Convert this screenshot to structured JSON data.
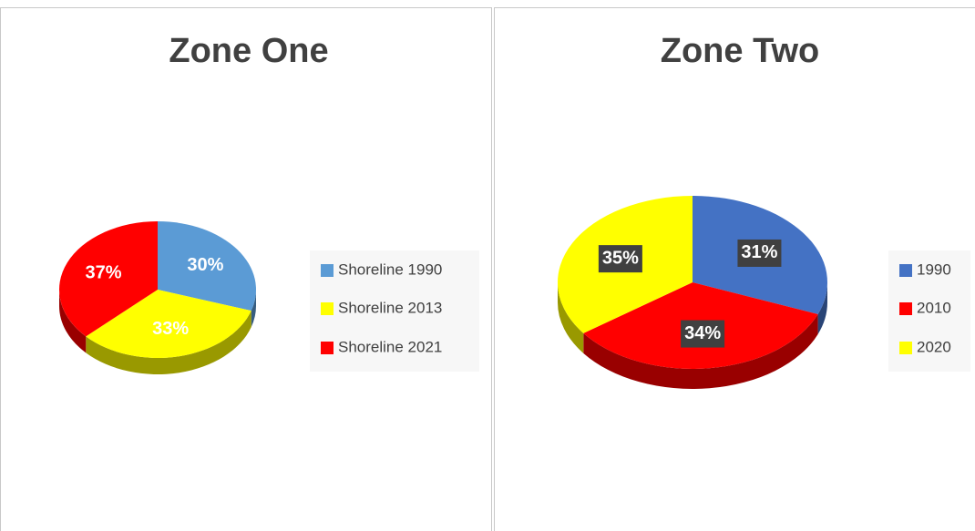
{
  "chart_data": [
    {
      "type": "pie",
      "title": "Zone One",
      "categories": [
        "Shoreline 1990",
        "Shoreline 2013",
        "Shoreline 2021"
      ],
      "values": [
        30,
        33,
        37
      ],
      "value_labels": [
        "30%",
        "33%",
        "37%"
      ],
      "colors": [
        "#5b9bd5",
        "#ffff00",
        "#ff0000"
      ]
    },
    {
      "type": "pie",
      "title": "Zone Two",
      "categories": [
        "1990",
        "2010",
        "2020"
      ],
      "values": [
        31,
        34,
        35
      ],
      "value_labels": [
        "31%",
        "34%",
        "35%"
      ],
      "colors": [
        "#4472c4",
        "#ff0000",
        "#ffff00"
      ]
    }
  ]
}
